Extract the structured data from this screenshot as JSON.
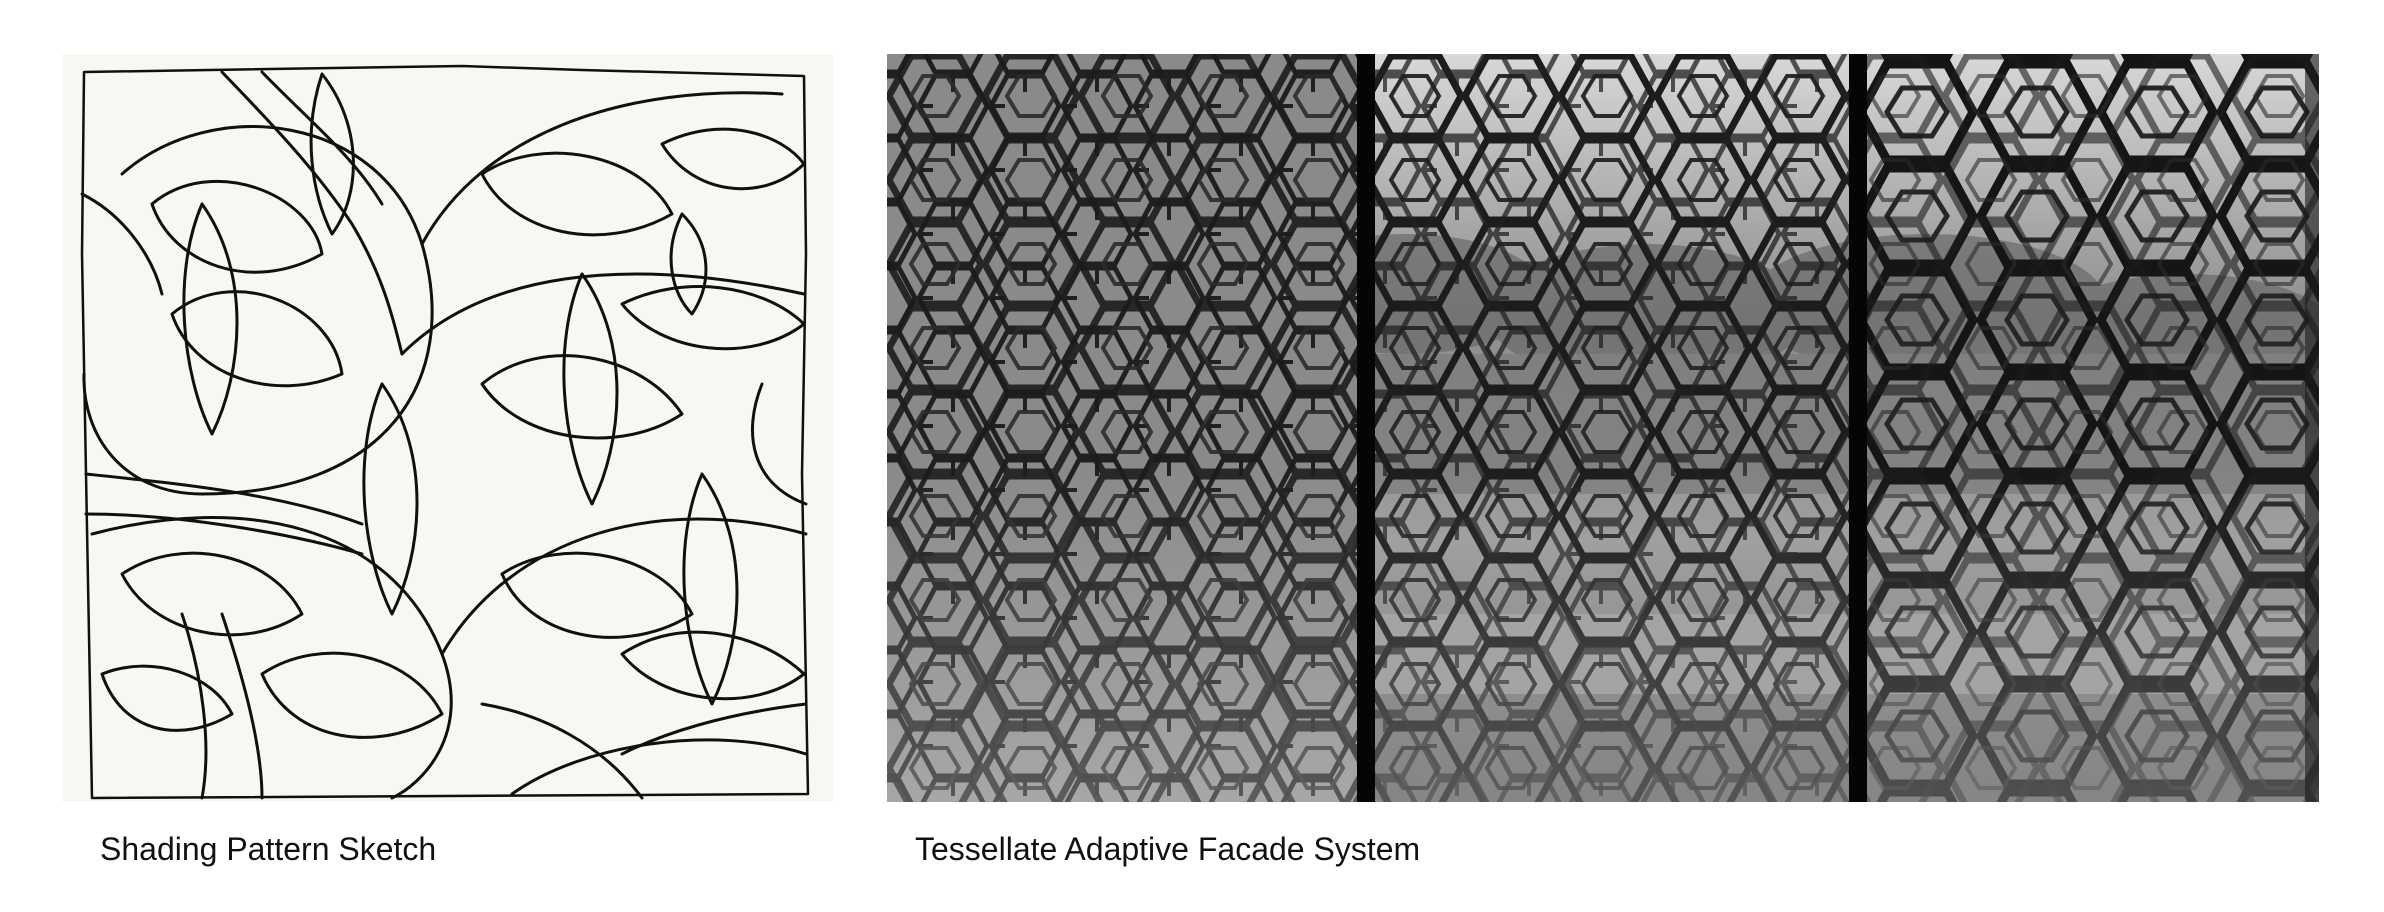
{
  "panels": [
    {
      "id": "sketch",
      "caption": "Shading Pattern Sketch",
      "icon": "pen-sketch-drawing",
      "colors": {
        "paper": "#f7f7f3",
        "ink": "#101010"
      }
    },
    {
      "id": "photo",
      "caption": "Tessellate Adaptive Facade System",
      "icon": "perforated-facade-photo",
      "colors": {
        "background": "#6f6f6f",
        "metal": "#1c1c1c",
        "frame": "#050505"
      }
    }
  ]
}
